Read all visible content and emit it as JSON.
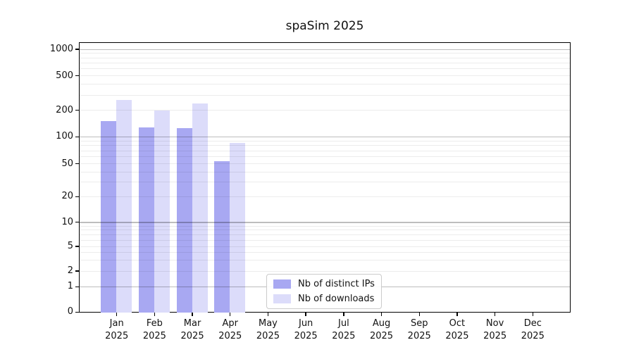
{
  "chart_data": {
    "type": "bar",
    "title": "spaSim 2025",
    "x_months": [
      "Jan",
      "Feb",
      "Mar",
      "Apr",
      "May",
      "Jun",
      "Jul",
      "Aug",
      "Sep",
      "Oct",
      "Nov",
      "Dec"
    ],
    "x_year": "2025",
    "y_ticks": [
      0,
      1,
      2,
      5,
      10,
      20,
      50,
      100,
      200,
      500,
      1000
    ],
    "y_scale": "symlog",
    "ylim": [
      0,
      1200
    ],
    "grid": "horizontal major and minor gridlines",
    "legend_position": "inside axes, bottom center",
    "series": [
      {
        "name": "Nb of distinct IPs",
        "color": "#a8a8f2",
        "values": [
          155,
          131,
          127,
          54,
          null,
          null,
          null,
          null,
          null,
          null,
          null,
          null
        ]
      },
      {
        "name": "Nb of downloads",
        "color": "#dcdcfa",
        "values": [
          270,
          201,
          245,
          87,
          null,
          null,
          null,
          null,
          null,
          null,
          null,
          null
        ]
      }
    ]
  }
}
